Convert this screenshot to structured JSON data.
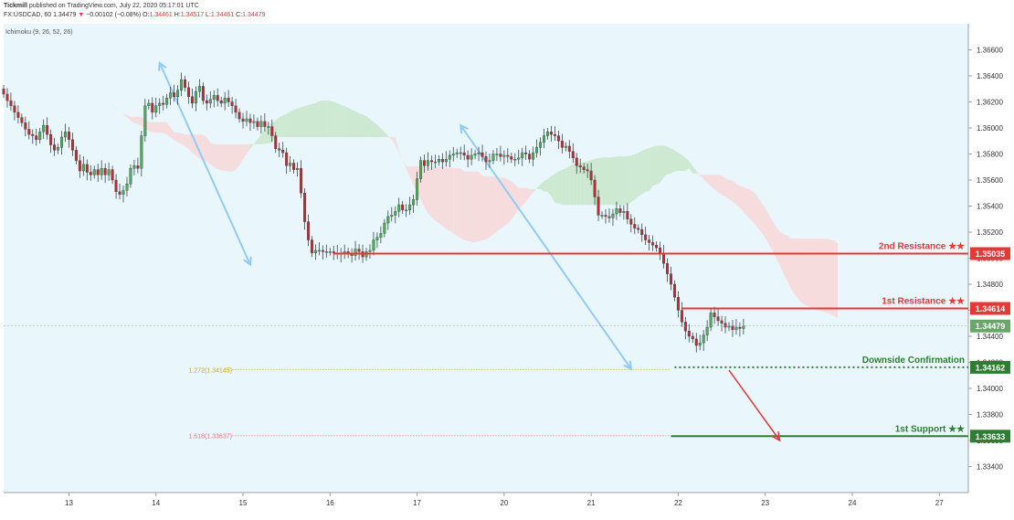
{
  "header": {
    "publisher": "Tickmill",
    "published_text": "published on TradingView.com, July 22, 2020 05:17:01 UTC",
    "symbol": "FX:USDCAD, 60",
    "last": "1.34479",
    "change": "−0.00102 (−0.08%)",
    "o_label": "O:",
    "o_value": "1.34461",
    "h_label": "H:",
    "h_value": "1.34517",
    "l_label": "L:",
    "l_value": "1.34461",
    "c_label": "C:",
    "c_value": "1.34479"
  },
  "indicator_label": "Ichimoku (9, 26, 52, 26)",
  "chart_data": {
    "type": "candlestick",
    "symbol": "FX:USDCAD",
    "interval": "60",
    "ylim": [
      1.332,
      1.368
    ],
    "y_ticks": [
      "1.36600",
      "1.36400",
      "1.36200",
      "1.36000",
      "1.35800",
      "1.35600",
      "1.35400",
      "1.35200",
      "1.35000",
      "1.34800",
      "1.34600",
      "1.34400",
      "1.34200",
      "1.34000",
      "1.33800",
      "1.33600",
      "1.33400"
    ],
    "y_tick_values": [
      1.366,
      1.364,
      1.362,
      1.36,
      1.358,
      1.356,
      1.354,
      1.352,
      1.35,
      1.348,
      1.346,
      1.344,
      1.342,
      1.34,
      1.338,
      1.336,
      1.334
    ],
    "x_ticks": [
      "13",
      "14",
      "15",
      "16",
      "17",
      "20",
      "21",
      "22",
      "23",
      "24",
      "27"
    ],
    "x_tick_index": [
      0,
      24,
      48,
      72,
      96,
      120,
      144,
      168,
      192,
      216,
      240
    ],
    "x_start_index": -18,
    "x_end_index": 248,
    "ohlc_close": [
      1.3626,
      1.3621,
      1.3617,
      1.3612,
      1.3608,
      1.3604,
      1.3599,
      1.3595,
      1.3594,
      1.3591,
      1.3597,
      1.3602,
      1.3595,
      1.3587,
      1.3583,
      1.3585,
      1.3593,
      1.3597,
      1.3591,
      1.3583,
      1.3575,
      1.3567,
      1.3572,
      1.3566,
      1.3564,
      1.3568,
      1.3564,
      1.3569,
      1.3564,
      1.3568,
      1.356,
      1.3551,
      1.3549,
      1.3552,
      1.3557,
      1.3569,
      1.3571,
      1.3569,
      1.3594,
      1.3617,
      1.3619,
      1.3612,
      1.3617,
      1.3619,
      1.3618,
      1.3623,
      1.3627,
      1.3624,
      1.3629,
      1.3637,
      1.3631,
      1.3624,
      1.3619,
      1.3628,
      1.3632,
      1.3621,
      1.3619,
      1.3622,
      1.3625,
      1.3621,
      1.3619,
      1.3623,
      1.362,
      1.3617,
      1.3612,
      1.3607,
      1.3605,
      1.3607,
      1.3604,
      1.3605,
      1.3601,
      1.3605,
      1.3601,
      1.3601,
      1.3594,
      1.3584,
      1.3583,
      1.3581,
      1.3571,
      1.3573,
      1.3568,
      1.3569,
      1.355,
      1.3528,
      1.3514,
      1.3504,
      1.3506,
      1.3506,
      1.3505,
      1.3505,
      1.3505,
      1.3504,
      1.3503,
      1.3504,
      1.3505,
      1.3503,
      1.3502,
      1.3507,
      1.3505,
      1.3501,
      1.3505,
      1.3506,
      1.3514,
      1.3516,
      1.3519,
      1.3527,
      1.3532,
      1.3533,
      1.3536,
      1.3541,
      1.3537,
      1.3537,
      1.3541,
      1.3545,
      1.3561,
      1.3575,
      1.3571,
      1.3575,
      1.3574,
      1.3574,
      1.3576,
      1.3574,
      1.3576,
      1.3579,
      1.358,
      1.3581,
      1.3581,
      1.3579,
      1.3576,
      1.3579,
      1.358,
      1.3581,
      1.3578,
      1.3574,
      1.3575,
      1.358,
      1.358,
      1.3578,
      1.3579,
      1.3578,
      1.3576,
      1.3576,
      1.3577,
      1.3581,
      1.358,
      1.3576,
      1.3581,
      1.3585,
      1.3589,
      1.3594,
      1.3597,
      1.3595,
      1.3594,
      1.359,
      1.3585,
      1.3586,
      1.3582,
      1.3577,
      1.3571,
      1.357,
      1.3568,
      1.3567,
      1.356,
      1.3547,
      1.3533,
      1.3533,
      1.3532,
      1.3531,
      1.3534,
      1.3538,
      1.3535,
      1.3536,
      1.353,
      1.3526,
      1.3523,
      1.3522,
      1.3518,
      1.3514,
      1.3512,
      1.351,
      1.3508,
      1.3504,
      1.3496,
      1.3488,
      1.348,
      1.347,
      1.346,
      1.3451,
      1.3444,
      1.344,
      1.3438,
      1.3433,
      1.3435,
      1.3441,
      1.3447,
      1.3458,
      1.3455,
      1.3452,
      1.345,
      1.3447,
      1.3448,
      1.3445,
      1.3447,
      1.3446,
      1.3448
    ]
  },
  "annotations": {
    "resistance2": {
      "label": "2nd Resistance ★★",
      "value": "1.35035",
      "price": 1.35035,
      "start_index": 73
    },
    "resistance1": {
      "label": "1st Resistance ★★",
      "value": "1.34614",
      "price": 1.34614,
      "start_index": 169
    },
    "downside": {
      "label": "Downside Confirmation",
      "value": "1.34162",
      "price": 1.34162,
      "start_index": 167
    },
    "support1": {
      "label": "1st Support ★★",
      "value": "1.33633",
      "price": 1.33633,
      "start_index": 166
    },
    "fib1272": {
      "label": "1.272(1.34145)",
      "price": 1.34145
    },
    "fib1618": {
      "label": "1.618(1.33637)",
      "price": 1.33637
    },
    "current_price": {
      "value": "1.34479",
      "price": 1.34479
    },
    "arrows": [
      {
        "from_index": 25,
        "from_price": 1.365,
        "to_index": 50,
        "to_price": 1.3495
      },
      {
        "from_index": 108,
        "from_price": 1.3602,
        "to_index": 155,
        "to_price": 1.3415
      }
    ],
    "projection_arrow": {
      "from_index": 182,
      "from_price": 1.3414,
      "to_index": 196,
      "to_price": 1.336
    }
  },
  "colors": {
    "background": "#e9f7fd",
    "bull": "#4caf50",
    "bear": "#c62828",
    "resistance": "#e53935",
    "support": "#2e7d32",
    "cloud_green": "#c8e6c9",
    "cloud_red": "#f8d7d7",
    "arrow_blue": "#90caf9"
  }
}
